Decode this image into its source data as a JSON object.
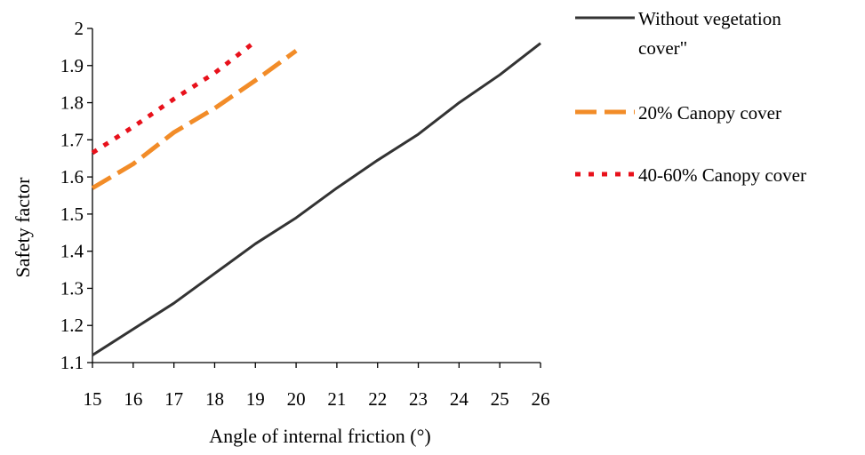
{
  "chart_data": {
    "type": "line",
    "xlabel": "Angle of internal friction (°)",
    "ylabel": "Safety factor",
    "xlim": [
      15,
      26
    ],
    "ylim": [
      1.1,
      2.0
    ],
    "xticks": [
      "15",
      "16",
      "17",
      "18",
      "19",
      "20",
      "21",
      "22",
      "23",
      "24",
      "25",
      "26"
    ],
    "yticks": [
      "1.1",
      "1.2",
      "1.3",
      "1.4",
      "1.5",
      "1.6",
      "1.7",
      "1.8",
      "1.9",
      "2"
    ],
    "grid": false,
    "legend_position": "top-right",
    "series": [
      {
        "name": "Without vegetation cover\"",
        "legend_lines": [
          "Without vegetation",
          "cover\""
        ],
        "color": "#333333",
        "dash": "solid",
        "x": [
          15,
          16,
          17,
          18,
          19,
          20,
          21,
          22,
          23,
          24,
          25,
          26
        ],
        "y": [
          1.12,
          1.19,
          1.26,
          1.34,
          1.42,
          1.49,
          1.57,
          1.645,
          1.715,
          1.8,
          1.875,
          1.96
        ]
      },
      {
        "name": "20% Canopy cover",
        "legend_lines": [
          "20% Canopy cover"
        ],
        "color": "#f28c28",
        "dash": "dashed",
        "x": [
          15,
          16,
          17,
          18,
          19,
          20
        ],
        "y": [
          1.57,
          1.635,
          1.72,
          1.785,
          1.86,
          1.94
        ]
      },
      {
        "name": "40-60% Canopy cover",
        "legend_lines": [
          "40-60% Canopy cover"
        ],
        "color": "#e8111b",
        "dash": "dotted",
        "x": [
          15,
          16,
          17,
          18,
          19
        ],
        "y": [
          1.665,
          1.735,
          1.81,
          1.88,
          1.965
        ]
      }
    ]
  }
}
